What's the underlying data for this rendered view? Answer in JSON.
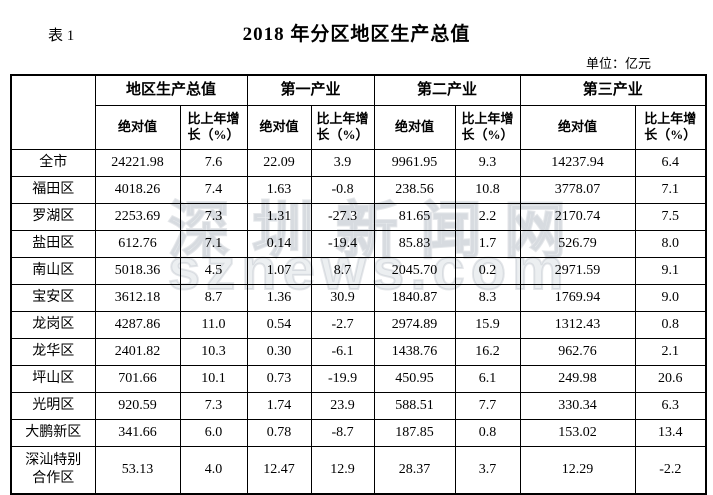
{
  "page": {
    "table_label": "表 1",
    "title": "2018 年分区地区生产总值",
    "unit_label": "单位：亿元"
  },
  "watermark": {
    "line1": "深圳新闻网",
    "line2": "sznews.com"
  },
  "table": {
    "group_headers": [
      "地区生产总值",
      "第一产业",
      "第二产业",
      "第三产业"
    ],
    "sub_header_absolute": "绝对值",
    "sub_header_growth": "比上年增长（%）",
    "rows": [
      {
        "region": "全市",
        "values": [
          "24221.98",
          "7.6",
          "22.09",
          "3.9",
          "9961.95",
          "9.3",
          "14237.94",
          "6.4"
        ]
      },
      {
        "region": "福田区",
        "values": [
          "4018.26",
          "7.4",
          "1.63",
          "-0.8",
          "238.56",
          "10.8",
          "3778.07",
          "7.1"
        ]
      },
      {
        "region": "罗湖区",
        "values": [
          "2253.69",
          "7.3",
          "1.31",
          "-27.3",
          "81.65",
          "2.2",
          "2170.74",
          "7.5"
        ]
      },
      {
        "region": "盐田区",
        "values": [
          "612.76",
          "7.1",
          "0.14",
          "-19.4",
          "85.83",
          "1.7",
          "526.79",
          "8.0"
        ]
      },
      {
        "region": "南山区",
        "values": [
          "5018.36",
          "4.5",
          "1.07",
          "8.7",
          "2045.70",
          "0.2",
          "2971.59",
          "9.1"
        ]
      },
      {
        "region": "宝安区",
        "values": [
          "3612.18",
          "8.7",
          "1.36",
          "30.9",
          "1840.87",
          "8.3",
          "1769.94",
          "9.0"
        ]
      },
      {
        "region": "龙岗区",
        "values": [
          "4287.86",
          "11.0",
          "0.54",
          "-2.7",
          "2974.89",
          "15.9",
          "1312.43",
          "0.8"
        ]
      },
      {
        "region": "龙华区",
        "values": [
          "2401.82",
          "10.3",
          "0.30",
          "-6.1",
          "1438.76",
          "16.2",
          "962.76",
          "2.1"
        ]
      },
      {
        "region": "坪山区",
        "values": [
          "701.66",
          "10.1",
          "0.73",
          "-19.9",
          "450.95",
          "6.1",
          "249.98",
          "20.6"
        ]
      },
      {
        "region": "光明区",
        "values": [
          "920.59",
          "7.3",
          "1.74",
          "23.9",
          "588.51",
          "7.7",
          "330.34",
          "6.3"
        ]
      },
      {
        "region": "大鹏新区",
        "values": [
          "341.66",
          "6.0",
          "0.78",
          "-8.7",
          "187.85",
          "0.8",
          "153.02",
          "13.4"
        ]
      },
      {
        "region": "深汕特别合作区",
        "values": [
          "53.13",
          "4.0",
          "12.47",
          "12.9",
          "28.37",
          "3.7",
          "12.29",
          "-2.2"
        ]
      }
    ]
  }
}
